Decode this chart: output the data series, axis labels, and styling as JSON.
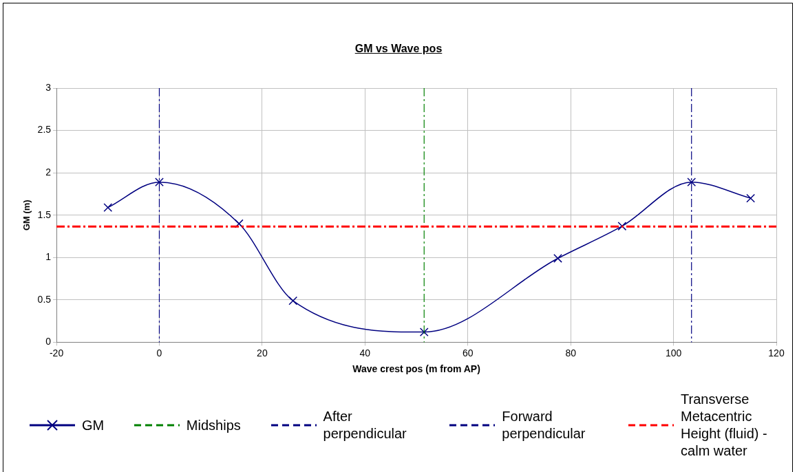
{
  "chart_data": {
    "type": "line",
    "title": "GM vs Wave pos",
    "xlabel": "Wave crest pos (m from AP)",
    "ylabel": "GM (m)",
    "x": [
      -10,
      0,
      15.5,
      26,
      51.5,
      77.5,
      90,
      103.5,
      115
    ],
    "series": [
      {
        "name": "GM",
        "color": "#000080",
        "values": [
          1.59,
          1.89,
          1.4,
          0.49,
          0.12,
          0.99,
          1.37,
          1.89,
          1.7
        ]
      }
    ],
    "ref_lines": [
      {
        "axis": "x",
        "value": 51.5,
        "label": "Midships",
        "color": "#008000",
        "line_style": "dashdot"
      },
      {
        "axis": "x",
        "value": 0,
        "label": "After perpendicular",
        "color": "#000080",
        "line_style": "dashdot"
      },
      {
        "axis": "x",
        "value": 103.5,
        "label": "Forward perpendicular",
        "color": "#000080",
        "line_style": "dashdot"
      },
      {
        "axis": "y",
        "value": 1.365,
        "label": "Transverse Metacentric Height (fluid) - calm water",
        "color": "#ff0000",
        "line_style": "dashdot"
      }
    ],
    "xlim": [
      -20,
      120
    ],
    "xticks": [
      -20,
      0,
      20,
      40,
      60,
      80,
      100,
      120
    ],
    "ylim": [
      0,
      3
    ],
    "yticks": [
      0,
      0.5,
      1,
      1.5,
      2,
      2.5,
      3
    ],
    "grid": true,
    "legend": "bottom",
    "marker": "cross",
    "line_style": "solid"
  }
}
